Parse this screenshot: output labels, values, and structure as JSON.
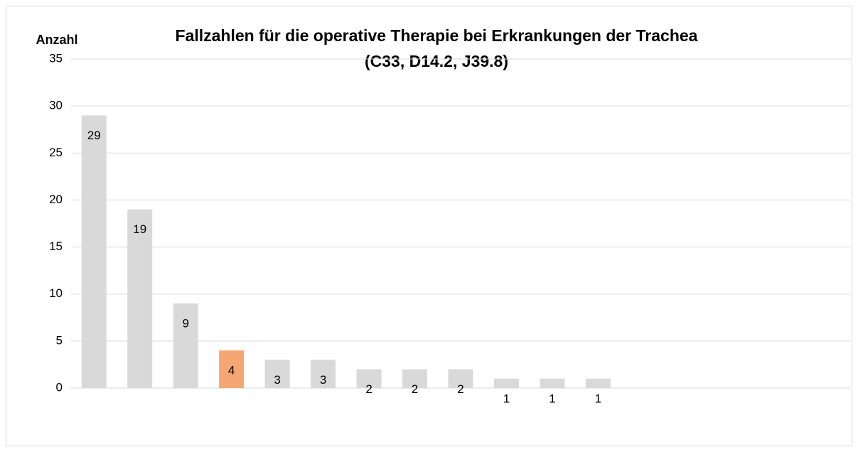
{
  "chart_data": {
    "type": "bar",
    "title": [
      "Fallzahlen für die operative Therapie bei Erkrankungen der Trachea",
      "(C33, D14.2, J39.8)"
    ],
    "y_label": "Anzahl",
    "categories": [
      null,
      null,
      null,
      null,
      null,
      null,
      null,
      null,
      null,
      null,
      null,
      null,
      null,
      null,
      null,
      null,
      null
    ],
    "values": [
      29,
      19,
      9,
      4,
      3,
      3,
      2,
      2,
      2,
      1,
      1,
      1,
      null,
      null,
      null,
      null,
      null
    ],
    "colors": [
      "#d9d9d9",
      "#d9d9d9",
      "#d9d9d9",
      "#f4a772",
      "#d9d9d9",
      "#d9d9d9",
      "#d9d9d9",
      "#d9d9d9",
      "#d9d9d9",
      "#d9d9d9",
      "#d9d9d9",
      "#d9d9d9",
      "#d9d9d9",
      "#d9d9d9",
      "#d9d9d9",
      "#d9d9d9",
      "#d9d9d9"
    ],
    "ylim": [
      0,
      35
    ],
    "yticks": [
      0,
      5,
      10,
      15,
      20,
      25,
      30,
      35
    ],
    "grid": true
  }
}
